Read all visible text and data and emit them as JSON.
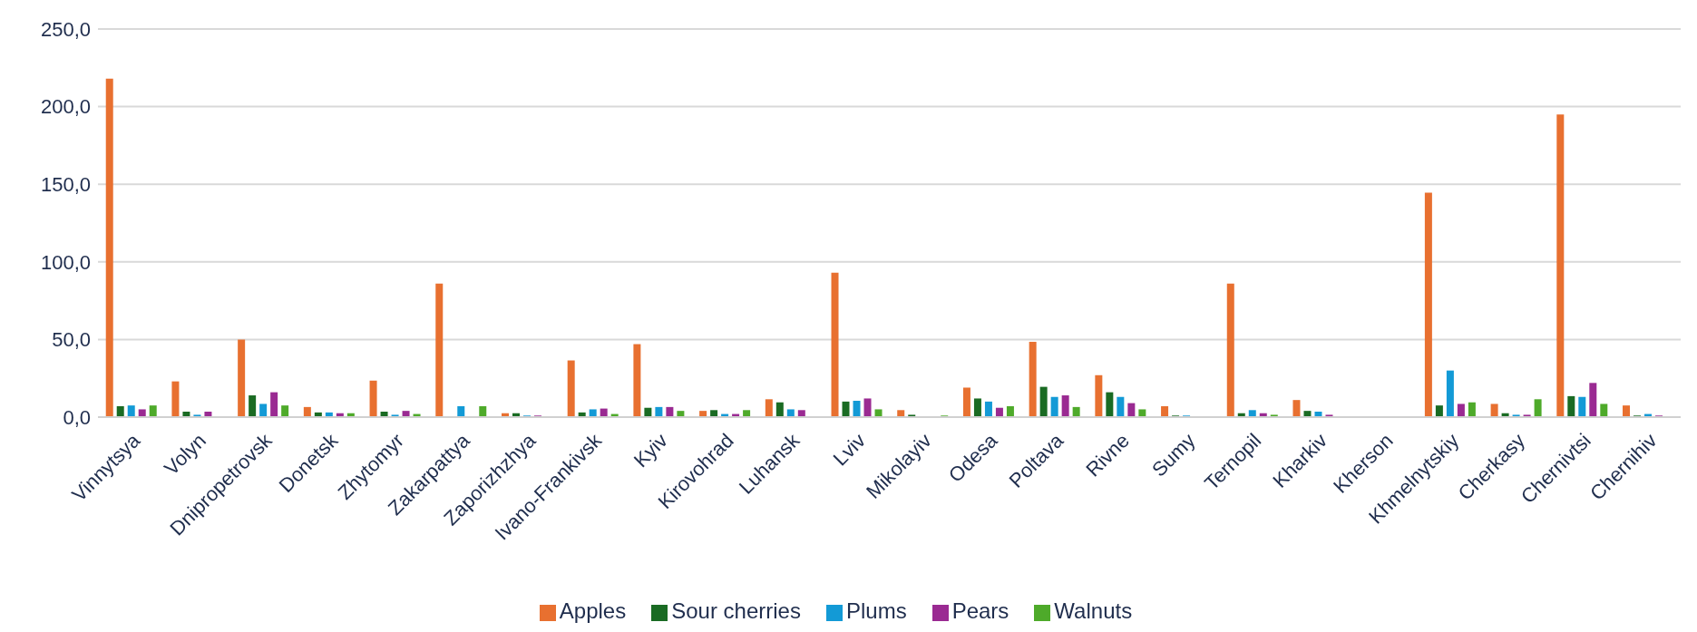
{
  "chart_data": {
    "type": "bar",
    "categories": [
      "Vinnytsya",
      "Volyn",
      "Dnipropetrovsk",
      "Donetsk",
      "Zhytomyr",
      "Zakarpattya",
      "Zaporizhzhya",
      "Ivano-Frankivsk",
      "Kyiv",
      "Kirovohrad",
      "Luhansk",
      "Lviv",
      "Mikolayiv",
      "Odesa",
      "Poltava",
      "Rivne",
      "Sumy",
      "Ternopil",
      "Kharkiv",
      "Kherson",
      "Khmelnytskiy",
      "Cherkasy",
      "Chernivtsi",
      "Chernihiv"
    ],
    "series": [
      {
        "name": "Apples",
        "color": "#e87030",
        "values": [
          218,
          23,
          50,
          6.5,
          23.5,
          86,
          2.5,
          36.5,
          47,
          4,
          11.5,
          93,
          4.5,
          19,
          48.5,
          27,
          7,
          86,
          11,
          0,
          144.5,
          8.5,
          195,
          7.5
        ]
      },
      {
        "name": "Sour cherries",
        "color": "#1a6b23",
        "values": [
          7,
          3.5,
          14,
          3,
          3.5,
          null,
          2.5,
          3,
          6,
          4.5,
          9.5,
          10,
          1.5,
          12,
          19.5,
          16,
          1,
          2.5,
          4,
          0,
          7.5,
          2.5,
          13.5,
          1
        ]
      },
      {
        "name": "Plums",
        "color": "#139ad6",
        "values": [
          7.5,
          1.5,
          8.5,
          3,
          1.5,
          7,
          1,
          5,
          6.5,
          2,
          5,
          10.5,
          null,
          10,
          13,
          13,
          1,
          4.5,
          3.5,
          0,
          30,
          1.5,
          13,
          2
        ]
      },
      {
        "name": "Pears",
        "color": "#9a2a92",
        "values": [
          5,
          3.5,
          16,
          2.5,
          4,
          0,
          1,
          5.5,
          6.5,
          2,
          4.5,
          12,
          null,
          6,
          14,
          9,
          0,
          2.5,
          1.5,
          0,
          8.5,
          1.5,
          22,
          1
        ]
      },
      {
        "name": "Walnuts",
        "color": "#4eaa2a",
        "values": [
          7.5,
          null,
          7.5,
          2.5,
          2,
          7,
          0,
          2,
          4,
          4.5,
          0,
          5,
          1,
          7,
          6.5,
          5,
          0,
          1.5,
          0,
          0,
          9.5,
          11.5,
          8.5,
          0
        ]
      }
    ],
    "ylim": [
      0,
      250
    ],
    "yticks": [
      {
        "value": 0,
        "label": "0,0"
      },
      {
        "value": 50,
        "label": "50,0"
      },
      {
        "value": 100,
        "label": "100,0"
      },
      {
        "value": 150,
        "label": "150,0"
      },
      {
        "value": 200,
        "label": "200,0"
      },
      {
        "value": 250,
        "label": "250,0"
      }
    ],
    "grid": "y",
    "legend": "bottom"
  }
}
